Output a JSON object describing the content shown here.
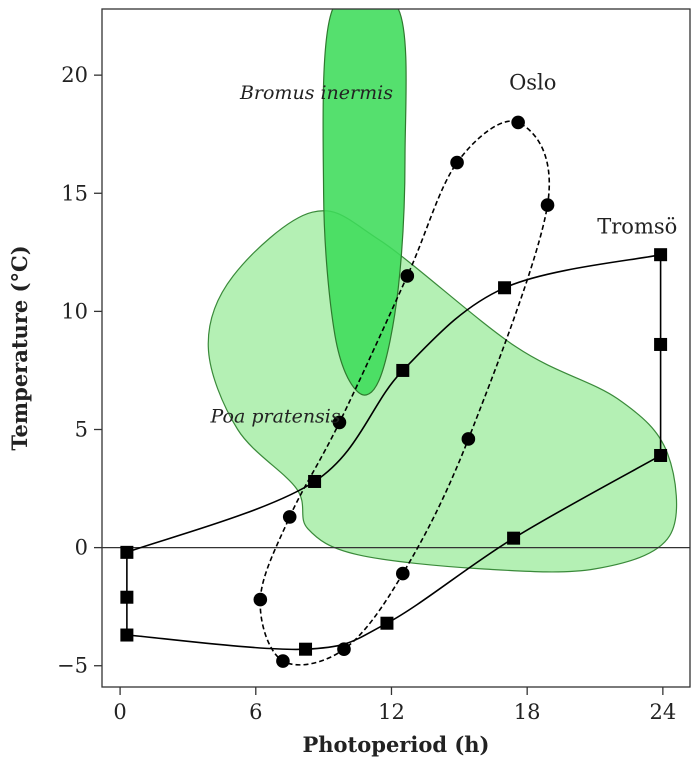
{
  "chart_data": {
    "type": "scatter",
    "xlabel": "Photoperiod (h)",
    "ylabel": "Temperature (°C)",
    "xlim": [
      -0.8,
      25.2
    ],
    "ylim": [
      -5.9,
      22.8
    ],
    "xticks": [
      0,
      6,
      12,
      18,
      24
    ],
    "yticks": [
      -5,
      0,
      5,
      10,
      15,
      20
    ],
    "grid": false,
    "zero_line": true,
    "series": [
      {
        "name": "Oslo",
        "marker": "circle",
        "line": "dashed",
        "color": "#000000",
        "points": [
          {
            "x": 6.2,
            "y": -2.2
          },
          {
            "x": 7.5,
            "y": 1.3
          },
          {
            "x": 9.7,
            "y": 5.3
          },
          {
            "x": 12.7,
            "y": 11.5
          },
          {
            "x": 14.9,
            "y": 16.3
          },
          {
            "x": 17.6,
            "y": 18.0
          },
          {
            "x": 18.9,
            "y": 14.5
          },
          {
            "x": 15.4,
            "y": 4.6
          },
          {
            "x": 12.5,
            "y": -1.1
          },
          {
            "x": 9.9,
            "y": -4.3
          },
          {
            "x": 7.2,
            "y": -4.8
          }
        ]
      },
      {
        "name": "Tromsö",
        "marker": "square",
        "line": "solid",
        "color": "#000000",
        "points": [
          {
            "x": 0.3,
            "y": -0.2
          },
          {
            "x": 8.6,
            "y": 2.8
          },
          {
            "x": 12.5,
            "y": 7.5
          },
          {
            "x": 17.0,
            "y": 11.0
          },
          {
            "x": 23.9,
            "y": 12.4
          },
          {
            "x": 23.9,
            "y": 8.6
          },
          {
            "x": 23.9,
            "y": 3.9
          },
          {
            "x": 17.4,
            "y": 0.4
          },
          {
            "x": 11.8,
            "y": -3.2
          },
          {
            "x": 8.2,
            "y": -4.3
          },
          {
            "x": 0.3,
            "y": -3.7
          },
          {
            "x": 0.3,
            "y": -2.1
          }
        ]
      }
    ],
    "regions": [
      {
        "name": "Poa pratensis",
        "fill": "#b4f0b4",
        "stroke": "#3a8a3a",
        "outline": [
          {
            "x": 7.8,
            "y": 2.5
          },
          {
            "x": 8.3,
            "y": 0.8
          },
          {
            "x": 10.5,
            "y": -0.3
          },
          {
            "x": 16.0,
            "y": -0.9
          },
          {
            "x": 21.0,
            "y": -0.9
          },
          {
            "x": 24.3,
            "y": 0.5
          },
          {
            "x": 24.2,
            "y": 4.0
          },
          {
            "x": 22.0,
            "y": 6.3
          },
          {
            "x": 17.5,
            "y": 8.5
          },
          {
            "x": 11.5,
            "y": 13.0
          },
          {
            "x": 8.5,
            "y": 14.2
          },
          {
            "x": 5.0,
            "y": 11.5
          },
          {
            "x": 3.9,
            "y": 8.5
          },
          {
            "x": 5.2,
            "y": 5.0
          }
        ]
      },
      {
        "name": "Bromus inermis",
        "fill": "#3ddc5a",
        "stroke": "#2f7a2f",
        "outline": [
          {
            "x": 9.4,
            "y": 22.8
          },
          {
            "x": 9.0,
            "y": 15.0
          },
          {
            "x": 9.5,
            "y": 9.0
          },
          {
            "x": 10.5,
            "y": 6.6
          },
          {
            "x": 11.5,
            "y": 7.2
          },
          {
            "x": 12.3,
            "y": 11.0
          },
          {
            "x": 12.6,
            "y": 16.5
          },
          {
            "x": 12.3,
            "y": 22.8
          }
        ]
      }
    ],
    "annotations": [
      {
        "text": "Bromus inermis",
        "x": 5.3,
        "y": 19.0
      },
      {
        "text": "Poa pratensis",
        "x": 4.0,
        "y": 5.3
      },
      {
        "text": "Oslo",
        "x": 17.2,
        "y": 19.4
      },
      {
        "text": "Tromsö",
        "x": 21.1,
        "y": 13.3
      }
    ]
  }
}
